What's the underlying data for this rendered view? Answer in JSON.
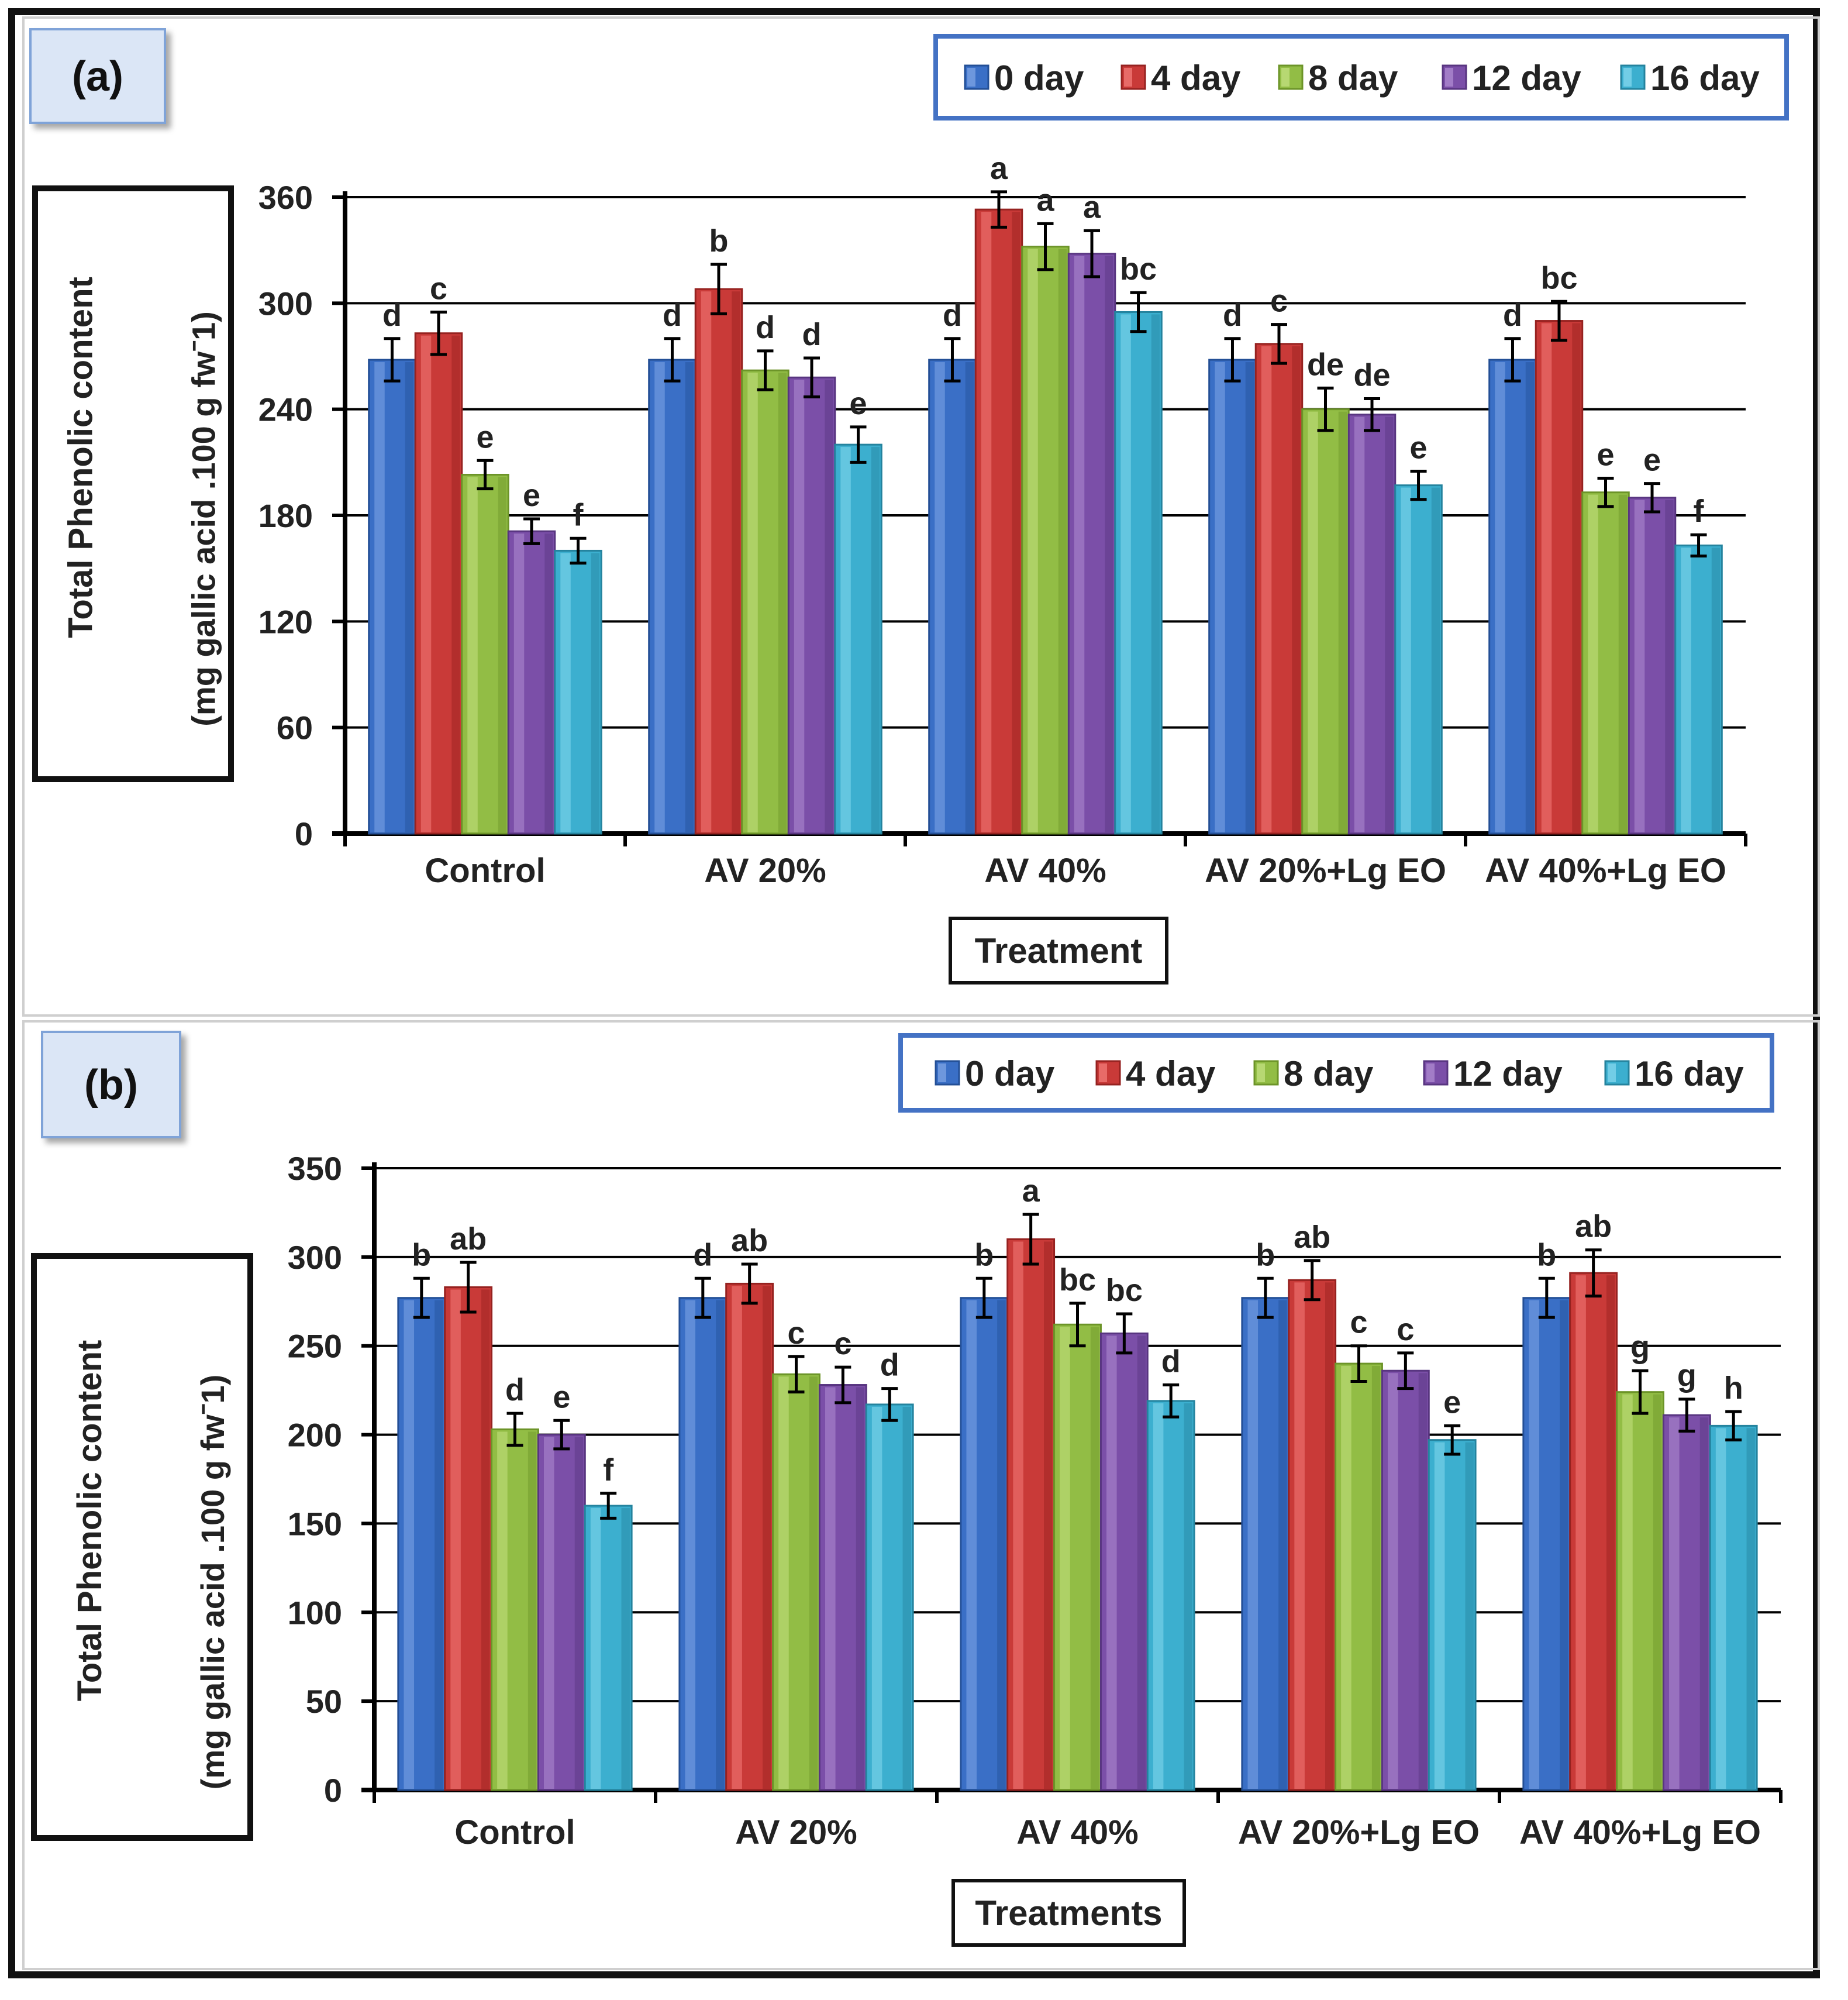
{
  "chart_data": [
    {
      "type": "bar",
      "panel_label": "(a)",
      "ylabel_line1": "Total Phenolic content",
      "ylabel_line2": "(mg gallic acid .100 g fwˉ1)",
      "xlabel": "Treatment",
      "ylim": [
        0,
        360
      ],
      "yticks": [
        0,
        60,
        120,
        180,
        240,
        300,
        360
      ],
      "grid": true,
      "legend_position": "top-right",
      "categories": [
        "Control",
        "AV 20%",
        "AV 40%",
        "AV 20%+Lg EO",
        "AV 40%+Lg EO"
      ],
      "series": [
        {
          "name": "0 day",
          "values": [
            268,
            268,
            268,
            268,
            268
          ],
          "errors": [
            12,
            12,
            12,
            12,
            12
          ],
          "letters": [
            "d",
            "d",
            "d",
            "d",
            "d"
          ]
        },
        {
          "name": "4 day",
          "values": [
            283,
            308,
            353,
            277,
            290
          ],
          "errors": [
            12,
            14,
            10,
            11,
            11
          ],
          "letters": [
            "c",
            "b",
            "a",
            "c",
            "bc"
          ]
        },
        {
          "name": "8 day",
          "values": [
            203,
            262,
            332,
            240,
            193
          ],
          "errors": [
            8,
            11,
            13,
            12,
            8
          ],
          "letters": [
            "e",
            "d",
            "a",
            "de",
            "e"
          ]
        },
        {
          "name": "12 day",
          "values": [
            171,
            258,
            328,
            237,
            190
          ],
          "errors": [
            7,
            11,
            13,
            9,
            8
          ],
          "letters": [
            "e",
            "d",
            "a",
            "de",
            "e"
          ]
        },
        {
          "name": "16 day",
          "values": [
            160,
            220,
            295,
            197,
            163
          ],
          "errors": [
            7,
            10,
            11,
            8,
            6
          ],
          "letters": [
            "f",
            "e",
            "bc",
            "e",
            "f"
          ]
        }
      ]
    },
    {
      "type": "bar",
      "panel_label": "(b)",
      "ylabel_line1": "Total Phenolic  content",
      "ylabel_line2": "(mg gallic acid .100 g fwˉ1)",
      "xlabel": "Treatments",
      "ylim": [
        0,
        350
      ],
      "yticks": [
        0,
        50,
        100,
        150,
        200,
        250,
        300,
        350
      ],
      "grid": true,
      "legend_position": "top-right",
      "categories": [
        "Control",
        "AV 20%",
        "AV 40%",
        "AV 20%+Lg EO",
        "AV 40%+Lg EO"
      ],
      "series": [
        {
          "name": "0 day",
          "values": [
            277,
            277,
            277,
            277,
            277
          ],
          "errors": [
            11,
            11,
            11,
            11,
            11
          ],
          "letters": [
            "b",
            "d",
            "b",
            "b",
            "b"
          ]
        },
        {
          "name": "4 day",
          "values": [
            283,
            285,
            310,
            287,
            291
          ],
          "errors": [
            14,
            11,
            14,
            11,
            13
          ],
          "letters": [
            "ab",
            "ab",
            "a",
            "ab",
            "ab"
          ]
        },
        {
          "name": "8 day",
          "values": [
            203,
            234,
            262,
            240,
            224
          ],
          "errors": [
            9,
            10,
            12,
            10,
            12
          ],
          "letters": [
            "d",
            "c",
            "bc",
            "c",
            "g"
          ]
        },
        {
          "name": "12 day",
          "values": [
            200,
            228,
            257,
            236,
            211
          ],
          "errors": [
            8,
            10,
            11,
            10,
            9
          ],
          "letters": [
            "e",
            "c",
            "bc",
            "c",
            "g"
          ]
        },
        {
          "name": "16 day",
          "values": [
            160,
            217,
            219,
            197,
            205
          ],
          "errors": [
            7,
            9,
            9,
            8,
            8
          ],
          "letters": [
            "f",
            "d",
            "d",
            "e",
            "h"
          ]
        }
      ]
    }
  ],
  "colors": {
    "series": [
      "#3a6fc6",
      "#c93a38",
      "#92bd45",
      "#7b4fa8",
      "#3cafcf"
    ],
    "series_light": [
      "#6d97dd",
      "#e86b68",
      "#b7d872",
      "#a27cc7",
      "#72cde6"
    ],
    "series_dark": [
      "#234f96",
      "#962220",
      "#6c9428",
      "#583580",
      "#24839e"
    ],
    "legend_border": "#4472c4",
    "label_box_fill": "#dbe6f6",
    "label_box_border": "#7fa3d8"
  }
}
